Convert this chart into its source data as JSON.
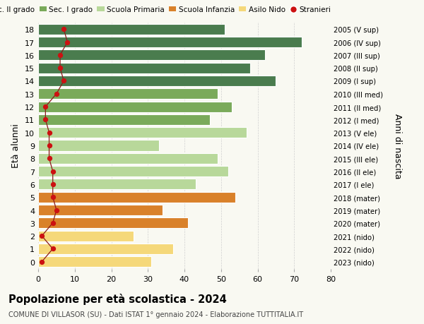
{
  "ages": [
    18,
    17,
    16,
    15,
    14,
    13,
    12,
    11,
    10,
    9,
    8,
    7,
    6,
    5,
    4,
    3,
    2,
    1,
    0
  ],
  "right_labels": [
    "2005 (V sup)",
    "2006 (IV sup)",
    "2007 (III sup)",
    "2008 (II sup)",
    "2009 (I sup)",
    "2010 (III med)",
    "2011 (II med)",
    "2012 (I med)",
    "2013 (V ele)",
    "2014 (IV ele)",
    "2015 (III ele)",
    "2016 (II ele)",
    "2017 (I ele)",
    "2018 (mater)",
    "2019 (mater)",
    "2020 (mater)",
    "2021 (nido)",
    "2022 (nido)",
    "2023 (nido)"
  ],
  "bar_values": [
    51,
    72,
    62,
    58,
    65,
    49,
    53,
    47,
    57,
    33,
    49,
    52,
    43,
    54,
    34,
    41,
    26,
    37,
    31
  ],
  "bar_colors": [
    "#4a7c4e",
    "#4a7c4e",
    "#4a7c4e",
    "#4a7c4e",
    "#4a7c4e",
    "#7aaa5a",
    "#7aaa5a",
    "#7aaa5a",
    "#b8d89a",
    "#b8d89a",
    "#b8d89a",
    "#b8d89a",
    "#b8d89a",
    "#d9812a",
    "#d9812a",
    "#d9812a",
    "#f5d87a",
    "#f5d87a",
    "#f5d87a"
  ],
  "stranieri_values": [
    7,
    8,
    6,
    6,
    7,
    5,
    2,
    2,
    3,
    3,
    3,
    4,
    4,
    4,
    5,
    4,
    1,
    4,
    1
  ],
  "title_bold": "Popolazione per età scolastica - 2024",
  "subtitle": "COMUNE DI VILLASOR (SU) - Dati ISTAT 1° gennaio 2024 - Elaborazione TUTTITALIA.IT",
  "ylabel_left": "Età alunni",
  "ylabel_right": "Anni di nascita",
  "xlim": [
    0,
    80
  ],
  "xticks": [
    0,
    10,
    20,
    30,
    40,
    50,
    60,
    70,
    80
  ],
  "legend_labels": [
    "Sec. II grado",
    "Sec. I grado",
    "Scuola Primaria",
    "Scuola Infanzia",
    "Asilo Nido",
    "Stranieri"
  ],
  "legend_colors": [
    "#4a7c4e",
    "#7aaa5a",
    "#b8d89a",
    "#d9812a",
    "#f5d87a",
    "#cc1111"
  ],
  "bg_color": "#f9f9f2",
  "grid_color": "#cccccc"
}
